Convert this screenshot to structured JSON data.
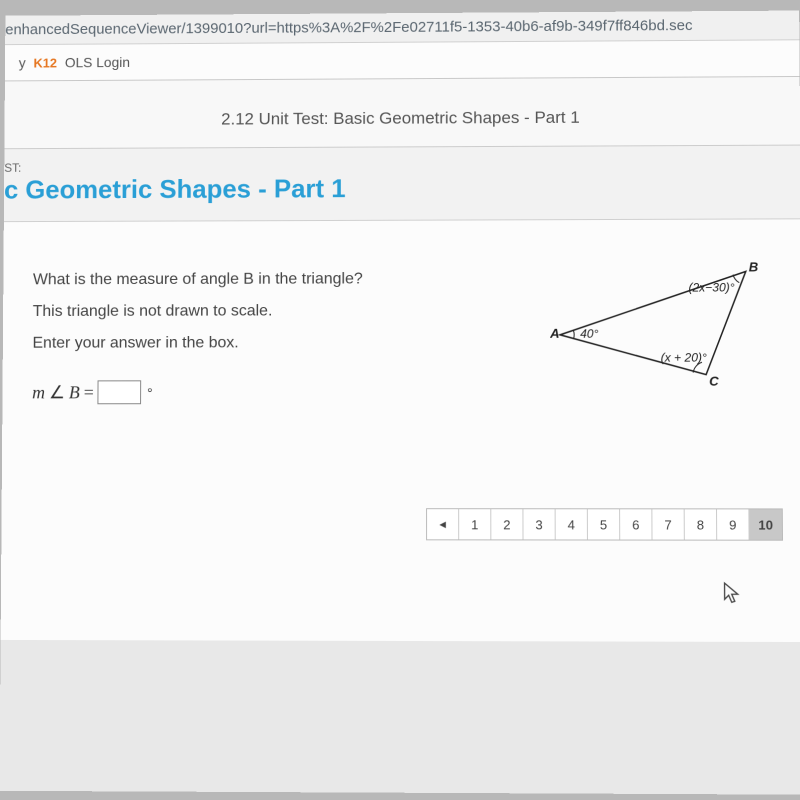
{
  "browser": {
    "url_fragment": "enhancedSequenceViewer/1399010?url=https%3A%2F%2Fe02711f5-1353-40b6-af9b-349f7ff846bd.sec",
    "bookmark_prefix": "y",
    "bookmark_brand": "K12",
    "bookmark_label": "OLS Login"
  },
  "header": {
    "page_title": "2.12 Unit Test: Basic Geometric Shapes - Part 1",
    "section_label": "ST:",
    "section_title": "c Geometric Shapes - Part 1"
  },
  "question": {
    "line1": "What is the measure of angle B in the triangle?",
    "line2": "This triangle is not drawn to scale.",
    "line3": "Enter your answer in the box.",
    "answer_prefix_m": "m",
    "answer_angle": "∠",
    "answer_var": "B",
    "answer_eq": "=",
    "answer_value": "",
    "degree": "°"
  },
  "triangle": {
    "vertex_A": "A",
    "vertex_B": "B",
    "vertex_C": "C",
    "angle_A": "40°",
    "angle_B": "(2x−30)°",
    "angle_C": "(x + 20)°",
    "points": {
      "A": [
        10,
        75
      ],
      "B": [
        195,
        12
      ],
      "C": [
        155,
        115
      ]
    },
    "stroke": "#222",
    "stroke_width": 1.5
  },
  "pager": {
    "prev": "◂",
    "items": [
      "1",
      "2",
      "3",
      "4",
      "5",
      "6",
      "7",
      "8",
      "9",
      "10"
    ],
    "active_index": 9
  },
  "colors": {
    "title_blue": "#2a9fd6",
    "k12_orange": "#e67722",
    "bg": "#e8e8e8"
  }
}
